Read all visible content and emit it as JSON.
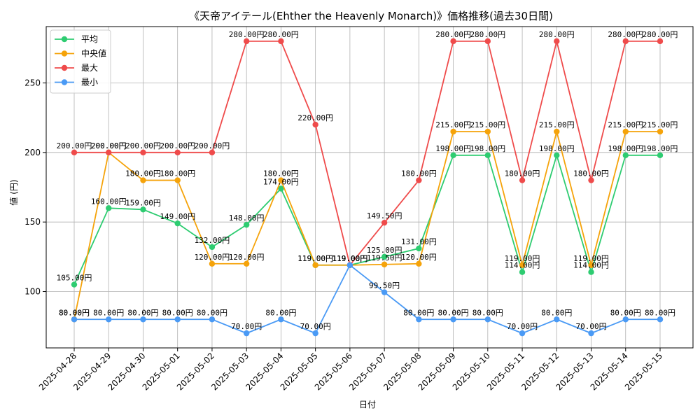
{
  "chart_data": {
    "type": "line",
    "title": "《天帝アイテール(Ehther the Heavenly Monarch)》価格推移(過去30日間)",
    "xlabel": "日付",
    "ylabel": "値 (円)",
    "ylim": [
      59.5,
      290.5
    ],
    "yticks": [
      100,
      150,
      200,
      250
    ],
    "grid": true,
    "legend_position": "top-left",
    "label_suffix": "円",
    "categories": [
      "2025-04-28",
      "2025-04-29",
      "2025-04-30",
      "2025-05-01",
      "2025-05-02",
      "2025-05-03",
      "2025-05-04",
      "2025-05-05",
      "2025-05-06",
      "2025-05-07",
      "2025-05-08",
      "2025-05-09",
      "2025-05-10",
      "2025-05-11",
      "2025-05-12",
      "2025-05-13",
      "2025-05-14",
      "2025-05-15"
    ],
    "series": [
      {
        "name": "平均",
        "color": "#2ecc71",
        "values": [
          105,
          160,
          159,
          149,
          132,
          148,
          174,
          119,
          119,
          125,
          131,
          198,
          198,
          114,
          198,
          114,
          198,
          198
        ]
      },
      {
        "name": "中央値",
        "color": "#f5a30a",
        "values": [
          80,
          200,
          180,
          180,
          120,
          120,
          180,
          119,
          119,
          119.5,
          120,
          215,
          215,
          119,
          215,
          119,
          215,
          215
        ]
      },
      {
        "name": "最大",
        "color": "#ef4b4b",
        "values": [
          200,
          200,
          200,
          200,
          200,
          280,
          280,
          220,
          119,
          149.5,
          180,
          280,
          280,
          180,
          280,
          180,
          280,
          280
        ]
      },
      {
        "name": "最小",
        "color": "#4a9af5",
        "values": [
          80,
          80,
          80,
          80,
          80,
          70,
          80,
          70,
          119,
          99.5,
          80,
          80,
          80,
          70,
          80,
          70,
          80,
          80
        ]
      }
    ]
  }
}
